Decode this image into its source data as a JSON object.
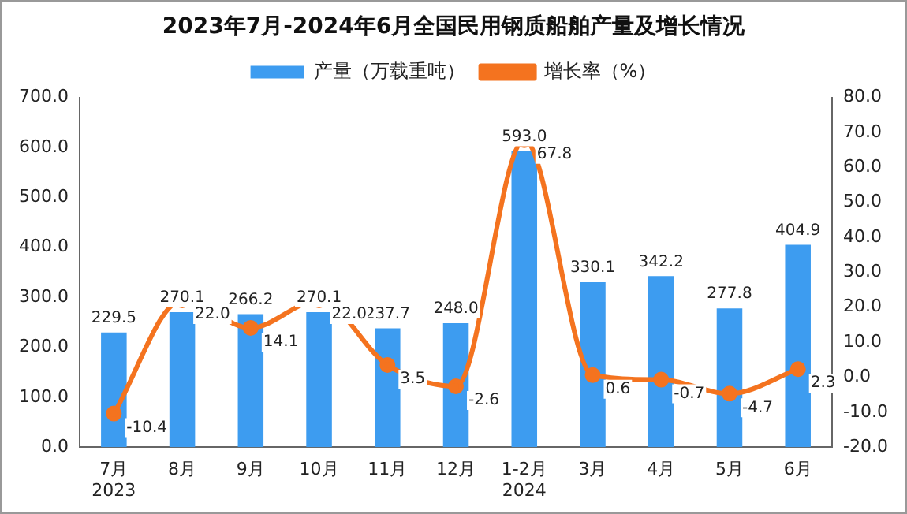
{
  "chart_data": {
    "type": "bar",
    "title": "2023年7月-2024年6月全国民用钢质船舶产量及增长情况",
    "categories": [
      "7月\n2023",
      "8月",
      "9月",
      "10月",
      "11月",
      "12月",
      "1-2月\n2024",
      "3月",
      "4月",
      "5月",
      "6月"
    ],
    "series": [
      {
        "name": "产量（万载重吨）",
        "color": "#3d9cf0",
        "values": [
          229.5,
          270.1,
          266.2,
          270.1,
          237.7,
          248.0,
          593.0,
          330.1,
          342.2,
          277.8,
          404.9
        ],
        "value_labels": [
          "229.5",
          "270.1",
          "266.2",
          "270.1",
          "237.7",
          "248.0",
          "593.0",
          "330.1",
          "342.2",
          "277.8",
          "404.9"
        ]
      },
      {
        "name": "增长率（%）",
        "type": "line",
        "axis": "y2",
        "color": "#f4731f",
        "values": [
          -10.4,
          22.0,
          14.1,
          22.0,
          3.5,
          -2.6,
          67.8,
          0.6,
          -0.7,
          -4.7,
          2.3
        ],
        "value_labels": [
          "-10.4",
          "22.0",
          "14.1",
          "22.0",
          "3.5",
          "-2.6",
          "67.8",
          "0.6",
          "-0.7",
          "-4.7",
          "2.3"
        ]
      }
    ],
    "ylim": [
      0,
      700
    ],
    "yticks": [
      {
        "value": 0,
        "label": "0.0"
      },
      {
        "value": 100,
        "label": "100.0"
      },
      {
        "value": 200,
        "label": "200.0"
      },
      {
        "value": 300,
        "label": "300.0"
      },
      {
        "value": 400,
        "label": "400.0"
      },
      {
        "value": 500,
        "label": "500.0"
      },
      {
        "value": 600,
        "label": "600.0"
      },
      {
        "value": 700,
        "label": "700.0"
      }
    ],
    "y2lim": [
      -20,
      80
    ],
    "y2ticks": [
      {
        "value": -20,
        "label": "-20.0"
      },
      {
        "value": -10,
        "label": "-10.0"
      },
      {
        "value": 0,
        "label": "0.0"
      },
      {
        "value": 10,
        "label": "10.0"
      },
      {
        "value": 20,
        "label": "20.0"
      },
      {
        "value": 30,
        "label": "30.0"
      },
      {
        "value": 40,
        "label": "40.0"
      },
      {
        "value": 50,
        "label": "50.0"
      },
      {
        "value": 60,
        "label": "60.0"
      },
      {
        "value": 70,
        "label": "70.0"
      },
      {
        "value": 80,
        "label": "80.0"
      }
    ],
    "legend": "top",
    "marker": "circle",
    "grid": false
  }
}
